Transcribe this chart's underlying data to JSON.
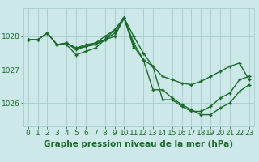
{
  "background_color": "#cce8e8",
  "grid_color": "#aacccc",
  "line_color": "#1a6b2a",
  "marker_color": "#1a6b2a",
  "xlabel": "Graphe pression niveau de la mer (hPa)",
  "xlim": [
    -0.5,
    23.5
  ],
  "ylim": [
    1025.3,
    1028.85
  ],
  "yticks": [
    1026,
    1027,
    1028
  ],
  "xticks": [
    0,
    1,
    2,
    3,
    4,
    5,
    6,
    7,
    8,
    9,
    10,
    11,
    12,
    13,
    14,
    15,
    16,
    17,
    18,
    19,
    20,
    21,
    22,
    23
  ],
  "series": [
    {
      "x": [
        0,
        1,
        2,
        3,
        4,
        5,
        6,
        7,
        8,
        9,
        10,
        11,
        12,
        13,
        14,
        15,
        16,
        17,
        18,
        19,
        20,
        21,
        22,
        23
      ],
      "y": [
        1027.9,
        1027.9,
        1028.1,
        1027.75,
        1027.75,
        1027.45,
        1027.55,
        1027.65,
        1027.9,
        1028.2,
        1028.55,
        1028.0,
        1027.5,
        1027.1,
        1026.1,
        1026.1,
        1025.9,
        1025.75,
        1025.75,
        1025.9,
        1026.15,
        1026.3,
        1026.7,
        1026.8
      ]
    },
    {
      "x": [
        0,
        1,
        2,
        3,
        4,
        5,
        6,
        7,
        8,
        9,
        10,
        11,
        12,
        13,
        14,
        15,
        16,
        17,
        18,
        19,
        20,
        21,
        22,
        23
      ],
      "y": [
        1027.9,
        1027.9,
        1028.1,
        1027.75,
        1027.8,
        1027.65,
        1027.7,
        1027.75,
        1027.9,
        1028.1,
        1028.55,
        1027.7,
        1027.3,
        1027.1,
        1026.8,
        1026.7,
        1026.6,
        1026.55,
        1026.65,
        1026.8,
        1026.95,
        1027.1,
        1027.2,
        1026.7
      ]
    },
    {
      "x": [
        0,
        1,
        2,
        3,
        4,
        5,
        6,
        7,
        8,
        9,
        10,
        11
      ],
      "y": [
        1027.9,
        1027.9,
        1028.1,
        1027.75,
        1027.8,
        1027.65,
        1027.75,
        1027.8,
        1027.9,
        1028.0,
        1028.55,
        1027.65
      ]
    },
    {
      "x": [
        3,
        4,
        5,
        6,
        7,
        8,
        9,
        10,
        11,
        12,
        13,
        14,
        15,
        16,
        17,
        18,
        19,
        20,
        21,
        22,
        23
      ],
      "y": [
        1027.75,
        1027.8,
        1027.6,
        1027.7,
        1027.8,
        1028.0,
        1028.2,
        1028.55,
        1027.8,
        1027.3,
        1026.4,
        1026.4,
        1026.15,
        1025.95,
        1025.8,
        1025.65,
        1025.65,
        1025.85,
        1026.0,
        1026.35,
        1026.55
      ]
    }
  ],
  "tick_fontsize": 6.5,
  "label_fontsize": 7.5,
  "label_fontweight": "bold",
  "linewidth": 1.0,
  "markersize": 3.5
}
